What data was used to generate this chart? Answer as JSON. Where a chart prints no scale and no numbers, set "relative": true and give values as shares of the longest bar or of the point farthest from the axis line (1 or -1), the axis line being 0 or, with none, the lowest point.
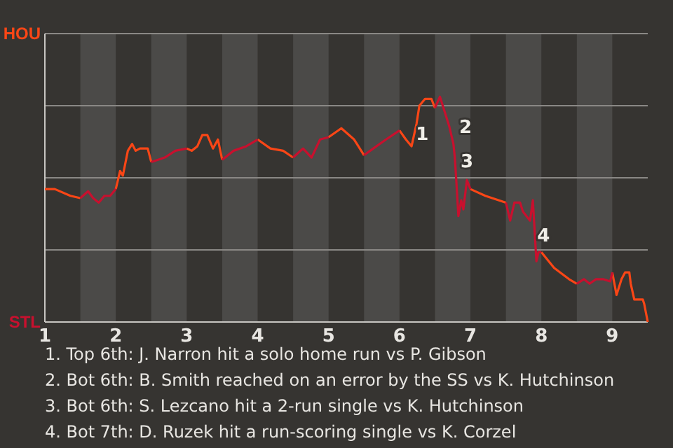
{
  "chart_data": {
    "type": "line",
    "relative": true,
    "xlim": [
      1,
      9.5
    ],
    "xticks": [
      1,
      2,
      3,
      4,
      5,
      6,
      7,
      8,
      9
    ],
    "marker": "none",
    "line_style": "solid",
    "x": [
      1,
      1.14,
      1.36,
      1.5,
      1.61,
      1.68,
      1.76,
      1.84,
      1.92,
      2,
      2.06,
      2.1,
      2.17,
      2.23,
      2.28,
      2.34,
      2.4,
      2.45,
      2.5,
      2.69,
      2.84,
      3,
      3.07,
      3.15,
      3.22,
      3.29,
      3.37,
      3.44,
      3.5,
      3.66,
      3.84,
      4,
      4.18,
      4.36,
      4.5,
      4.64,
      4.76,
      4.88,
      5,
      5.18,
      5.36,
      5.5,
      5.63,
      5.81,
      6,
      6.09,
      6.17,
      6.24,
      6.28,
      6.36,
      6.45,
      6.5,
      6.57,
      6.63,
      6.7,
      6.76,
      6.78,
      6.8,
      6.83,
      6.87,
      6.9,
      6.95,
      7,
      7.21,
      7.5,
      7.56,
      7.62,
      7.7,
      7.74,
      7.79,
      7.84,
      7.88,
      7.93,
      7.96,
      8,
      8.18,
      8.39,
      8.5,
      8.6,
      8.68,
      8.77,
      8.87,
      8.97,
      9,
      9.06,
      9.13,
      9.18,
      9.24,
      9.26,
      9.31,
      9.43,
      9.45,
      9.5
    ],
    "series": [
      {
        "color": "#fa4616",
        "values": [
          0.59,
          0.59,
          0.56,
          0.55,
          null,
          null,
          null,
          null,
          null,
          0.59,
          0.67,
          0.65,
          0.76,
          0.79,
          0.76,
          0.77,
          0.77,
          0.77,
          0.71,
          null,
          null,
          0.77,
          0.76,
          0.78,
          0.83,
          0.83,
          0.77,
          0.81,
          0.72,
          null,
          null,
          0.81,
          0.77,
          0.76,
          0.73,
          null,
          null,
          null,
          0.82,
          0.86,
          0.81,
          0.74,
          null,
          null,
          0.85,
          0.81,
          0.78,
          0.88,
          0.96,
          0.99,
          0.99,
          0.95,
          null,
          null,
          null,
          null,
          null,
          null,
          null,
          null,
          null,
          null,
          0.59,
          0.56,
          0.53,
          null,
          null,
          null,
          null,
          null,
          null,
          null,
          null,
          null,
          0.31,
          0.24,
          0.19,
          0.17,
          null,
          null,
          null,
          null,
          null,
          0.22,
          0.12,
          0.19,
          0.22,
          0.22,
          0.17,
          0.1,
          0.1,
          0.08,
          0
        ]
      },
      {
        "color": "#c8102e",
        "values": [
          null,
          null,
          null,
          0.55,
          0.58,
          0.55,
          0.53,
          0.56,
          0.56,
          0.59,
          null,
          null,
          null,
          null,
          null,
          null,
          null,
          null,
          0.71,
          0.73,
          0.76,
          0.77,
          null,
          null,
          null,
          null,
          null,
          null,
          0.72,
          0.76,
          0.78,
          0.81,
          null,
          null,
          0.73,
          0.77,
          0.73,
          0.81,
          0.82,
          null,
          null,
          0.74,
          0.77,
          0.81,
          0.85,
          null,
          null,
          null,
          null,
          null,
          null,
          0.95,
          1,
          0.94,
          0.87,
          0.79,
          0.73,
          0.63,
          0.47,
          0.54,
          0.5,
          0.63,
          0.59,
          null,
          0.53,
          0.45,
          0.53,
          0.53,
          0.49,
          0.47,
          0.45,
          0.54,
          0.27,
          0.31,
          0.31,
          null,
          null,
          0.17,
          0.19,
          0.17,
          0.19,
          0.19,
          0.18,
          0.22,
          null,
          null,
          null,
          null,
          null,
          null,
          null,
          null,
          null
        ]
      }
    ],
    "bands": [
      {
        "axis": "x",
        "from": 1.5,
        "to": 2,
        "color": "#4b4a48"
      },
      {
        "axis": "x",
        "from": 2.5,
        "to": 3,
        "color": "#4b4a48"
      },
      {
        "axis": "x",
        "from": 3.5,
        "to": 4,
        "color": "#4b4a48"
      },
      {
        "axis": "x",
        "from": 4.5,
        "to": 5,
        "color": "#4b4a48"
      },
      {
        "axis": "x",
        "from": 5.5,
        "to": 6,
        "color": "#4b4a48"
      },
      {
        "axis": "x",
        "from": 6.5,
        "to": 7,
        "color": "#4b4a48"
      },
      {
        "axis": "x",
        "from": 7.5,
        "to": 8,
        "color": "#4b4a48"
      },
      {
        "axis": "x",
        "from": 8.5,
        "to": 9,
        "color": "#4b4a48"
      }
    ],
    "ref_lines": [
      {
        "axis": "y",
        "value": 0.32,
        "color": "#8a8885"
      },
      {
        "axis": "y",
        "value": 0.64,
        "color": "#8a8885"
      },
      {
        "axis": "y",
        "value": 0.96,
        "color": "#8a8885"
      },
      {
        "axis": "y",
        "value": 1.28,
        "color": "#8a8885"
      }
    ],
    "annotations": [
      "HOU",
      "STL",
      {
        "text": "1",
        "x": 6.32,
        "y": 0.83
      },
      {
        "text": "2",
        "x": 6.93,
        "y": 0.86
      },
      {
        "text": "3",
        "x": 6.95,
        "y": 0.71
      },
      {
        "text": "4",
        "x": 8.03,
        "y": 0.38
      },
      "1. Top 6th: J. Narron hit a solo home run vs P. Gibson",
      "2. Bot 6th: B. Smith reached on an error by the SS vs K. Hutchinson",
      "3. Bot 6th: S. Lezcano hit a 2-run single vs K. Hutchinson",
      "4. Bot 7th: D. Ruzek hit a run-scoring single vs K. Corzel"
    ]
  }
}
